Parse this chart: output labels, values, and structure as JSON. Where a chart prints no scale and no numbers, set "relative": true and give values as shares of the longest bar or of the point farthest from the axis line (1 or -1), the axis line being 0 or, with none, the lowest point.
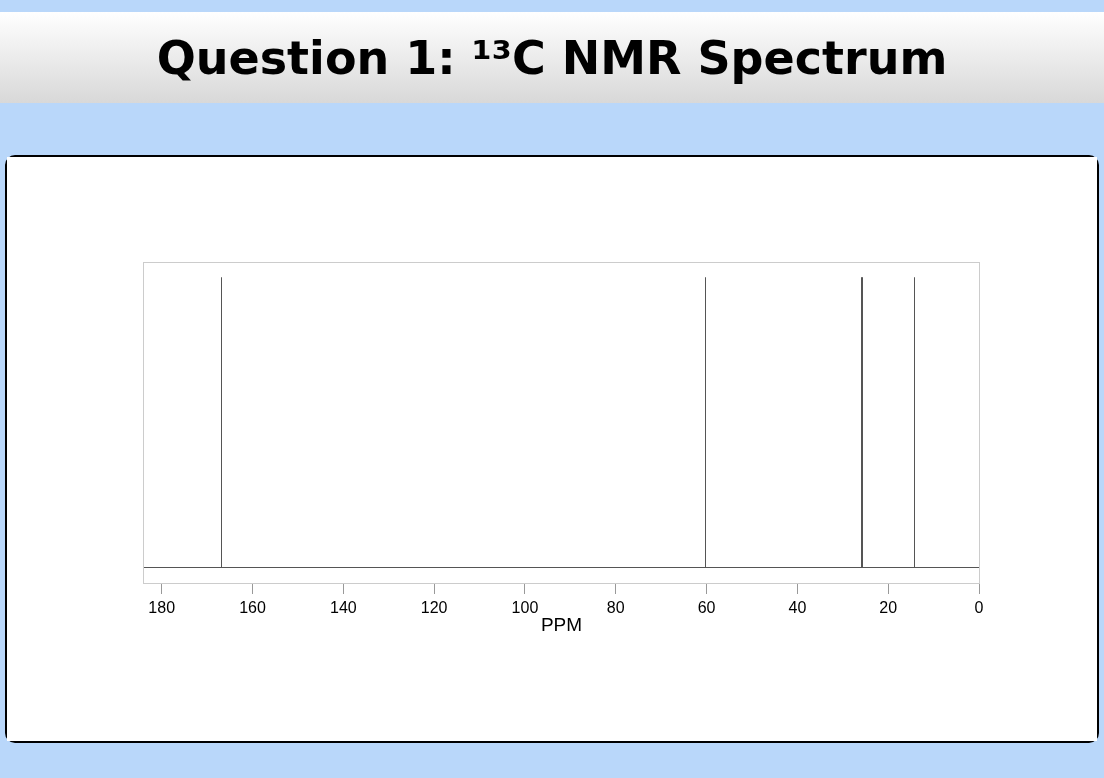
{
  "chart_data": {
    "type": "bar",
    "title": "Question 1: ¹³C NMR Spectrum",
    "xlabel": "PPM",
    "x": [
      166.7,
      60.1,
      25.6,
      14.1
    ],
    "values": [
      1,
      1,
      1,
      1
    ],
    "relative": true,
    "color": "#555555",
    "xlim": [
      183.9,
      0
    ],
    "xticks": [
      180,
      160,
      140,
      120,
      100,
      80,
      60,
      40,
      20,
      0
    ],
    "grid": false
  }
}
